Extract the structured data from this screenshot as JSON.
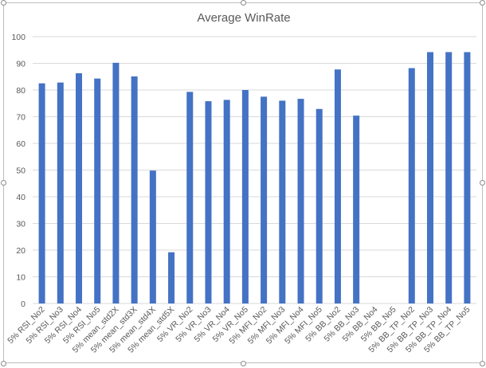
{
  "chart_data": {
    "type": "bar",
    "title": "Average WinRate",
    "xlabel": "",
    "ylabel": "",
    "ylim": [
      0,
      100
    ],
    "yticks": [
      0,
      10,
      20,
      30,
      40,
      50,
      60,
      70,
      80,
      90,
      100
    ],
    "grid": true,
    "legend": "none",
    "bar_color": "#4472c4",
    "categories": [
      "5% RSI_No2",
      "5% RSI_No3",
      "5% RSI_No4",
      "5% RSI_No5",
      "5% mean_std2X",
      "5% mean_std3X",
      "5% mean_std4X",
      "5% mean_std5X",
      "5% VR_No2",
      "5% VR_No3",
      "5% VR_No4",
      "5% VR_No5",
      "5% MFI_No2",
      "5% MFI_No3",
      "5% MFI_No4",
      "5% MFI_No5",
      "5% BB_No2",
      "5% BB_No3",
      "5% BB_No4",
      "5% BB_No5",
      "5% BB_TP_No2",
      "5% BB_TP_No3",
      "5% BB_TP_No4",
      "5% BB_TP_No5"
    ],
    "values": [
      82.5,
      82.8,
      86.3,
      84.3,
      90.2,
      85.1,
      49.8,
      19.2,
      79.3,
      75.8,
      76.3,
      80.0,
      77.5,
      76.0,
      76.7,
      72.9,
      87.7,
      70.4,
      null,
      null,
      88.2,
      94.2,
      94.2,
      94.2
    ]
  }
}
